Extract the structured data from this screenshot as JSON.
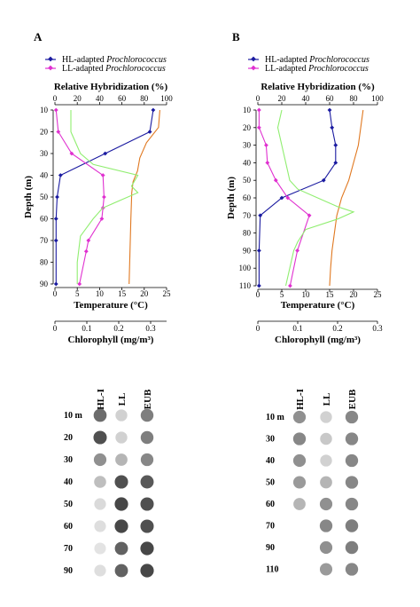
{
  "chart_data": [
    {
      "panel": "A",
      "type": "line",
      "legend": [
        {
          "prefix": "HL-adapted ",
          "italic": "Prochlorococcus",
          "color": "#1a1aa0"
        },
        {
          "prefix": "LL-adapted ",
          "italic": "Prochlorococcus",
          "color": "#e030d0"
        }
      ],
      "hyb_axis": {
        "label": "Relative Hybridization (%)",
        "ticks": [
          0,
          20,
          40,
          60,
          80,
          100
        ],
        "range": [
          0,
          100
        ]
      },
      "temp_axis": {
        "label": "Temperature (°C)",
        "ticks": [
          0,
          5,
          10,
          15,
          20,
          25
        ],
        "range": [
          0,
          25
        ]
      },
      "chl_axis": {
        "label": "Chlorophyll (mg/m³)",
        "ticks": [
          "0",
          "0.1",
          "0.2",
          "0.3"
        ],
        "tick_values": [
          0,
          0.1,
          0.2,
          0.3
        ],
        "range": [
          0,
          0.35
        ]
      },
      "y_axis": {
        "label": "Depth (m)",
        "ticks": [
          10,
          20,
          30,
          40,
          50,
          60,
          70,
          80,
          90
        ],
        "range": [
          10,
          90
        ]
      },
      "series": [
        {
          "name": "HL-adapted Prochlorococcus",
          "axis": "hyb",
          "color": "#1a1aa0",
          "markers": true,
          "points": [
            [
              88,
              10
            ],
            [
              85,
              20
            ],
            [
              45,
              30
            ],
            [
              5,
              40
            ],
            [
              2,
              50
            ],
            [
              1,
              60
            ],
            [
              1,
              70
            ],
            [
              1,
              90
            ]
          ]
        },
        {
          "name": "LL-adapted Prochlorococcus",
          "axis": "hyb",
          "color": "#e030d0",
          "markers": true,
          "points": [
            [
              1,
              10
            ],
            [
              3,
              20
            ],
            [
              15,
              30
            ],
            [
              43,
              40
            ],
            [
              44,
              50
            ],
            [
              43,
              55
            ],
            [
              42,
              60
            ],
            [
              30,
              70
            ],
            [
              28,
              75
            ],
            [
              22,
              90
            ]
          ]
        },
        {
          "axis": "temp",
          "color": "#e07820",
          "markers": false,
          "points": [
            [
              23.5,
              10
            ],
            [
              23.2,
              18
            ],
            [
              20.5,
              25
            ],
            [
              19,
              32
            ],
            [
              18.5,
              38
            ],
            [
              17.5,
              43
            ],
            [
              17.2,
              48
            ],
            [
              17.0,
              60
            ],
            [
              16.8,
              75
            ],
            [
              16.6,
              90
            ]
          ]
        },
        {
          "axis": "chl",
          "color": "#90ee70",
          "markers": false,
          "points": [
            [
              0.05,
              10
            ],
            [
              0.05,
              20
            ],
            [
              0.08,
              30
            ],
            [
              0.12,
              35
            ],
            [
              0.26,
              40
            ],
            [
              0.24,
              45
            ],
            [
              0.26,
              48
            ],
            [
              0.15,
              55
            ],
            [
              0.12,
              60
            ],
            [
              0.08,
              68
            ],
            [
              0.07,
              80
            ],
            [
              0.07,
              90
            ]
          ]
        }
      ],
      "blot": {
        "columns": [
          "HL-I",
          "LL",
          "EUB"
        ],
        "rows": [
          {
            "label": "10 m",
            "int": [
              0.7,
              0.15,
              0.6
            ]
          },
          {
            "label": "20",
            "int": [
              0.85,
              0.15,
              0.6
            ]
          },
          {
            "label": "30",
            "int": [
              0.5,
              0.3,
              0.55
            ]
          },
          {
            "label": "40",
            "int": [
              0.25,
              0.85,
              0.8
            ]
          },
          {
            "label": "50",
            "int": [
              0.1,
              0.9,
              0.85
            ]
          },
          {
            "label": "60",
            "int": [
              0.08,
              0.9,
              0.85
            ]
          },
          {
            "label": "70",
            "int": [
              0.05,
              0.75,
              0.9
            ]
          },
          {
            "label": "90",
            "int": [
              0.08,
              0.75,
              0.9
            ]
          }
        ]
      }
    },
    {
      "panel": "B",
      "type": "line",
      "legend": [
        {
          "prefix": "HL-adapted ",
          "italic": "Prochlorococcus",
          "color": "#1a1aa0"
        },
        {
          "prefix": "LL-adapted ",
          "italic": "Prochlorococcus",
          "color": "#e030d0"
        }
      ],
      "hyb_axis": {
        "label": "Relative Hybridization (%)",
        "ticks": [
          0,
          20,
          40,
          60,
          80,
          100
        ],
        "range": [
          0,
          100
        ]
      },
      "temp_axis": {
        "label": "Temperature (°C)",
        "ticks": [
          0,
          5,
          10,
          15,
          20,
          25
        ],
        "range": [
          0,
          25
        ]
      },
      "chl_axis": {
        "label": "Chlorophyll (mg/m³)",
        "ticks": [
          "0",
          "0.1",
          "0.2",
          "0.3"
        ],
        "tick_values": [
          0,
          0.1,
          0.2,
          0.3
        ],
        "range": [
          0,
          0.3
        ]
      },
      "y_axis": {
        "label": "Depth (m)",
        "ticks": [
          10,
          20,
          30,
          40,
          50,
          60,
          70,
          80,
          90,
          100,
          110
        ],
        "range": [
          10,
          110
        ]
      },
      "series": [
        {
          "name": "HL-adapted Prochlorococcus",
          "axis": "hyb",
          "color": "#1a1aa0",
          "markers": true,
          "points": [
            [
              60,
              10
            ],
            [
              62,
              20
            ],
            [
              65,
              30
            ],
            [
              65,
              40
            ],
            [
              55,
              50
            ],
            [
              20,
              60
            ],
            [
              2,
              70
            ],
            [
              1,
              90
            ],
            [
              1,
              110
            ]
          ]
        },
        {
          "name": "LL-adapted Prochlorococcus",
          "axis": "hyb",
          "color": "#e030d0",
          "markers": true,
          "points": [
            [
              1,
              10
            ],
            [
              1,
              20
            ],
            [
              7,
              30
            ],
            [
              8,
              40
            ],
            [
              15,
              50
            ],
            [
              25,
              60
            ],
            [
              43,
              70
            ],
            [
              33,
              90
            ],
            [
              27,
              110
            ]
          ]
        },
        {
          "axis": "temp",
          "color": "#e07820",
          "markers": false,
          "points": [
            [
              22,
              10
            ],
            [
              21.5,
              20
            ],
            [
              21,
              30
            ],
            [
              20,
              40
            ],
            [
              19,
              50
            ],
            [
              17.5,
              60
            ],
            [
              16.5,
              70
            ],
            [
              16,
              80
            ],
            [
              15.5,
              90
            ],
            [
              15.2,
              100
            ],
            [
              15.0,
              110
            ]
          ]
        },
        {
          "axis": "chl",
          "color": "#90ee70",
          "markers": false,
          "points": [
            [
              0.06,
              10
            ],
            [
              0.05,
              20
            ],
            [
              0.06,
              30
            ],
            [
              0.07,
              40
            ],
            [
              0.08,
              50
            ],
            [
              0.1,
              55
            ],
            [
              0.15,
              60
            ],
            [
              0.2,
              65
            ],
            [
              0.24,
              68
            ],
            [
              0.2,
              72
            ],
            [
              0.12,
              78
            ],
            [
              0.1,
              85
            ],
            [
              0.09,
              90
            ],
            [
              0.08,
              100
            ],
            [
              0.07,
              110
            ]
          ]
        }
      ],
      "blot": {
        "columns": [
          "HL-I",
          "LL",
          "EUB"
        ],
        "rows": [
          {
            "label": "10 m",
            "int": [
              0.5,
              0.15,
              0.55
            ]
          },
          {
            "label": "30",
            "int": [
              0.55,
              0.2,
              0.55
            ]
          },
          {
            "label": "40",
            "int": [
              0.5,
              0.15,
              0.55
            ]
          },
          {
            "label": "50",
            "int": [
              0.45,
              0.3,
              0.55
            ]
          },
          {
            "label": "60",
            "int": [
              0.3,
              0.5,
              0.55
            ]
          },
          {
            "label": "70",
            "int": [
              0.0,
              0.55,
              0.6
            ]
          },
          {
            "label": "90",
            "int": [
              0.0,
              0.5,
              0.6
            ]
          },
          {
            "label": "110",
            "int": [
              0.0,
              0.45,
              0.55
            ]
          }
        ]
      }
    }
  ]
}
